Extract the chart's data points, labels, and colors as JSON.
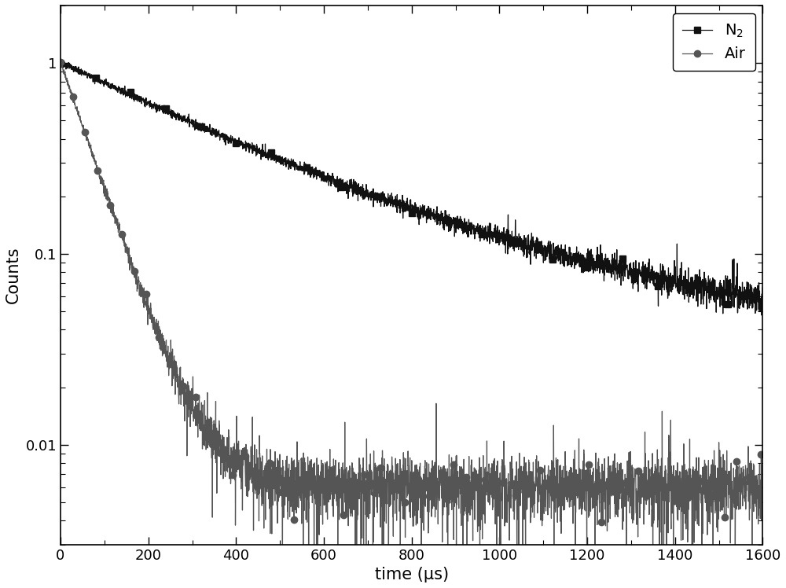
{
  "title": "",
  "xlabel": "time (μs)",
  "ylabel": "Counts",
  "xlim": [
    0,
    1600
  ],
  "ylim": [
    0.003,
    2.0
  ],
  "n2_tau1": 350,
  "n2_amp1": 0.85,
  "n2_tau2": 1200,
  "n2_amp2": 0.15,
  "n2_floor": 0.0085,
  "air_tau": 65,
  "air_amp": 1.0,
  "air_floor": 0.006,
  "n2_color": "#111111",
  "air_color": "#555555",
  "n2_label": "N$_2$",
  "air_label": "Air",
  "n2_marker": "s",
  "air_marker": "o",
  "marker_size": 6,
  "linewidth": 0.9,
  "seed": 123,
  "n_points": 4000,
  "marker_every_n2": 200,
  "marker_every_air": 70,
  "legend_loc": "upper right",
  "tick_labelsize": 13,
  "label_fontsize": 15,
  "legend_fontsize": 14,
  "yticks": [
    0.01,
    0.1,
    1
  ],
  "ytick_labels": [
    "0.01",
    "0.1",
    "1"
  ],
  "xticks": [
    0,
    200,
    400,
    600,
    800,
    1000,
    1200,
    1400,
    1600
  ]
}
